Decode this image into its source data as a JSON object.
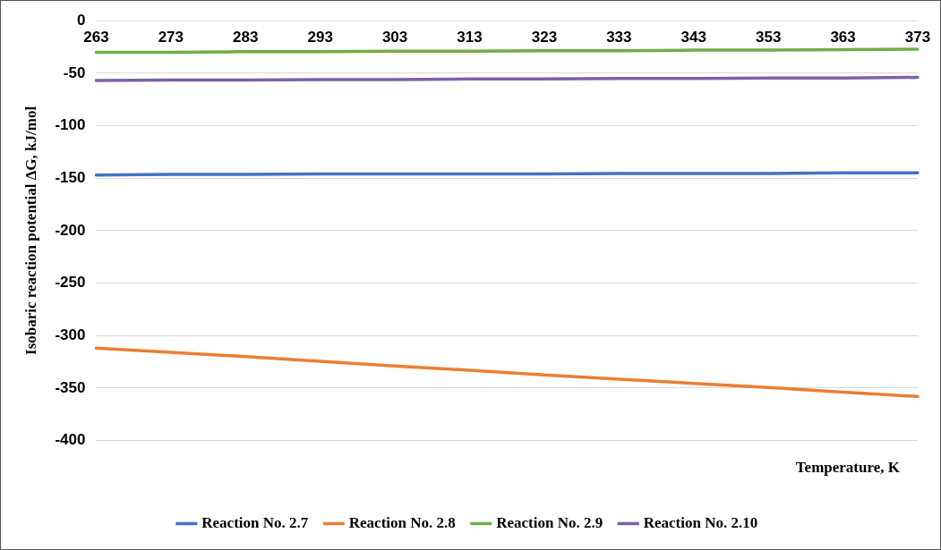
{
  "chart_data": {
    "type": "line",
    "xlabel": "Temperature, K",
    "ylabel": "Isobaric reaction potential ΔG, kJ/mol",
    "categories": [
      "263",
      "273",
      "283",
      "293",
      "303",
      "313",
      "323",
      "333",
      "343",
      "353",
      "363",
      "373"
    ],
    "series": [
      {
        "name": "Reaction No. 2.7",
        "color": "#4472c4",
        "values": [
          -147,
          -146.5,
          -146.5,
          -146,
          -146,
          -146,
          -146,
          -145.5,
          -145.5,
          -145.5,
          -145,
          -145
        ]
      },
      {
        "name": "Reaction No. 2.8",
        "color": "#ed7d31",
        "values": [
          -312,
          -316,
          -320,
          -324.5,
          -329,
          -333,
          -337.5,
          -341.5,
          -345.5,
          -349.5,
          -354,
          -358
        ]
      },
      {
        "name": "Reaction No. 2.9",
        "color": "#70ad47",
        "values": [
          -30,
          -30,
          -29.5,
          -29.5,
          -29,
          -29,
          -28.5,
          -28.5,
          -28,
          -28,
          -27.5,
          -27
        ]
      },
      {
        "name": "Reaction No. 2.10",
        "color": "#7f5fa8",
        "values": [
          -57,
          -56.5,
          -56.5,
          -56,
          -56,
          -55.5,
          -55.5,
          -55,
          -55,
          -54.5,
          -54.5,
          -54
        ]
      }
    ],
    "ylim": [
      -400,
      0
    ],
    "yticks": [
      -400,
      -350,
      -300,
      -250,
      -200,
      -150,
      -100,
      -50,
      0
    ],
    "grid": "y",
    "legend": "bottom",
    "marker": "none",
    "line_style": "solid"
  }
}
